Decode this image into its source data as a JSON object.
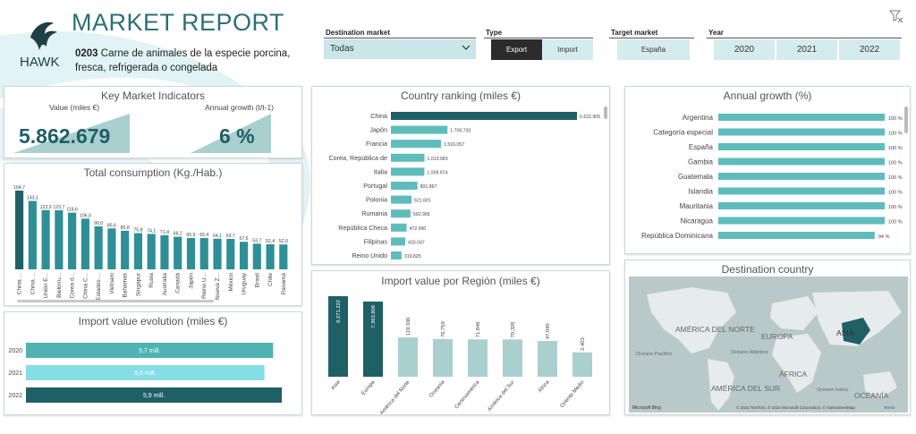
{
  "header": {
    "title": "MARKET REPORT",
    "logo_text": "HAWK",
    "product_code": "0203",
    "product_name": "Carne de animales de la especie porcina, fresca, refrigerada o congelada"
  },
  "filters": {
    "destination_label": "Destination market",
    "destination_value": "Todas",
    "type_label": "Type",
    "type_options": [
      "Export",
      "Import"
    ],
    "type_selected": "Export",
    "target_label": "Target market",
    "target_value": "España",
    "year_label": "Year",
    "years": [
      "2020",
      "2021",
      "2022"
    ]
  },
  "kpi": {
    "title": "Key Market Indicators",
    "value_label": "Value (miles €)",
    "value": "5.862.679",
    "growth_label": "Annual growth (t/t-1)",
    "growth": "6 %"
  },
  "colors": {
    "dark_teal": "#1f5f66",
    "mid_teal": "#5fbcbc",
    "light_teal": "#aacfcf",
    "pale_teal": "#d5ecee",
    "cyan": "#85dde6"
  },
  "charts": {
    "consumption": {
      "title": "Total consumption (Kg./Hab.)",
      "chart_data": {
        "type": "bar",
        "categories": [
          "China ...",
          "China ...",
          "Unión E...",
          "Bielorru...",
          "Corea d...",
          "China C...",
          "Estados ...",
          "Vietnam",
          "Bahamas",
          "Singapur",
          "Rusia",
          "Australia",
          "Canadá",
          "Japón",
          "Reino U...",
          "Nueva Z...",
          "México",
          "Uruguay",
          "Brasil",
          "Chile",
          "Panamá"
        ],
        "values": [
          164.7,
          143.1,
          123.9,
          123.7,
          118.6,
          106.0,
          90.0,
          85.6,
          80.8,
          75.8,
          74.1,
          71.4,
          68.2,
          65.5,
          65.4,
          64.1,
          63.7,
          57.6,
          53.7,
          52.4,
          52.0
        ],
        "labels": [
          "164,7",
          "143,1",
          "123,9",
          "123,7",
          "118,6",
          "106,0",
          "90,0",
          "85,6",
          "80,8",
          "75,8",
          "74,1",
          "71,4",
          "68,2",
          "65,5",
          "65,4",
          "64,1",
          "63,7",
          "57,6",
          "53,7",
          "52,4",
          "52,0"
        ]
      }
    },
    "evolution": {
      "title": "Import value evolution (miles €)",
      "chart_data": {
        "type": "bar",
        "categories": [
          "2020",
          "2021",
          "2022"
        ],
        "values": [
          5.7,
          5.5,
          5.9
        ],
        "labels": [
          "5,7 mill.",
          "5,5 mill.",
          "5,9 mill."
        ],
        "colors": [
          "#4fb3b3",
          "#85dde6",
          "#1f5f66"
        ]
      }
    },
    "ranking": {
      "title": "Country ranking (miles €)",
      "chart_data": {
        "type": "bar",
        "categories": [
          "China",
          "Japón",
          "Francia",
          "Corea, República de",
          "Italia",
          "Portugal",
          "Polonia",
          "Rumania",
          "República Checa",
          "Filipinas",
          "Reino Unido"
        ],
        "values": [
          5622905,
          1709733,
          1516057,
          1013983,
          1009974,
          801867,
          621601,
          592965,
          472990,
          433047,
          319825
        ],
        "labels": [
          "5.622.905",
          "1.709.733",
          "1.516.057",
          "1.013.983",
          "1.009.974",
          "801.867",
          "621.601",
          "592.965",
          "472.990",
          "433.047",
          "319.825"
        ]
      }
    },
    "region": {
      "title": "Import value por Región (miles €)",
      "chart_data": {
        "type": "bar",
        "categories": [
          "Asia",
          "Europa",
          "América del Norte",
          "Oceanía",
          "Centroamérica",
          "América del Sur",
          "África",
          "Oriente Medio"
        ],
        "values": [
          8271222,
          7363808,
          119336,
          76759,
          71846,
          70328,
          47090,
          2403
        ],
        "labels": [
          "8.271.222",
          "7.363.808",
          "119.336",
          "76.759",
          "71.846",
          "70.328",
          "47.090",
          "2.403"
        ]
      }
    },
    "growth": {
      "title": "Annual growth (%)",
      "chart_data": {
        "type": "bar",
        "categories": [
          "Argentina",
          "Categoría especial",
          "España",
          "Gambia",
          "Guatemala",
          "Islandia",
          "Mauritania",
          "Nicaragua",
          "República Dominicana"
        ],
        "values": [
          100,
          100,
          100,
          100,
          100,
          100,
          100,
          100,
          94
        ],
        "labels": [
          "100 %",
          "100 %",
          "100 %",
          "100 %",
          "100 %",
          "100 %",
          "100 %",
          "100 %",
          "94 %"
        ]
      }
    }
  },
  "map": {
    "title": "Destination country",
    "labels": {
      "na": "AMÉRICA DEL NORTE",
      "eu": "EUROPA",
      "asia": "ASIA",
      "af": "ÁFRICA",
      "sa": "AMÉRICA DEL SUR",
      "oc": "OCEANÍA",
      "pac": "Océano Pacífico",
      "atl": "Océano Atlántico",
      "ind": "Océano Índico"
    },
    "bing": "Microsoft Bing",
    "attribution": "© 2022 TomTom, © 2022 Microsoft Corporation, © OpenStreetMap",
    "terms": "Terms"
  }
}
